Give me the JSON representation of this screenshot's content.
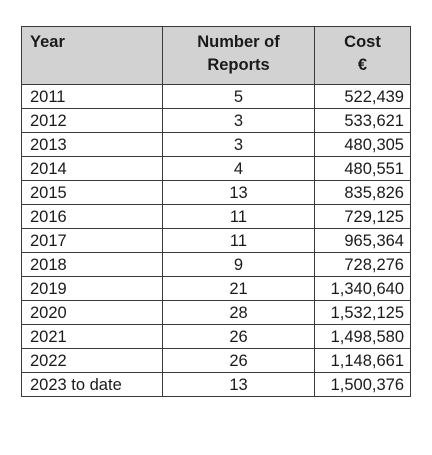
{
  "table": {
    "headers": {
      "year": "Year",
      "reports_line1": "Number of",
      "reports_line2": "Reports",
      "cost_line1": "Cost",
      "cost_line2": "€"
    },
    "rows": [
      {
        "year": "2011",
        "reports": "5",
        "cost": "522,439"
      },
      {
        "year": "2012",
        "reports": "3",
        "cost": "533,621"
      },
      {
        "year": "2013",
        "reports": "3",
        "cost": "480,305"
      },
      {
        "year": "2014",
        "reports": "4",
        "cost": "480,551"
      },
      {
        "year": "2015",
        "reports": "13",
        "cost": "835,826"
      },
      {
        "year": "2016",
        "reports": "11",
        "cost": "729,125"
      },
      {
        "year": "2017",
        "reports": "11",
        "cost": "965,364"
      },
      {
        "year": "2018",
        "reports": "9",
        "cost": "728,276"
      },
      {
        "year": "2019",
        "reports": "21",
        "cost": "1,340,640"
      },
      {
        "year": "2020",
        "reports": "28",
        "cost": "1,532,125"
      },
      {
        "year": "2021",
        "reports": "26",
        "cost": "1,498,580"
      },
      {
        "year": "2022",
        "reports": "26",
        "cost": "1,148,661"
      },
      {
        "year": "2023 to date",
        "reports": "13",
        "cost": "1,500,376"
      }
    ]
  }
}
